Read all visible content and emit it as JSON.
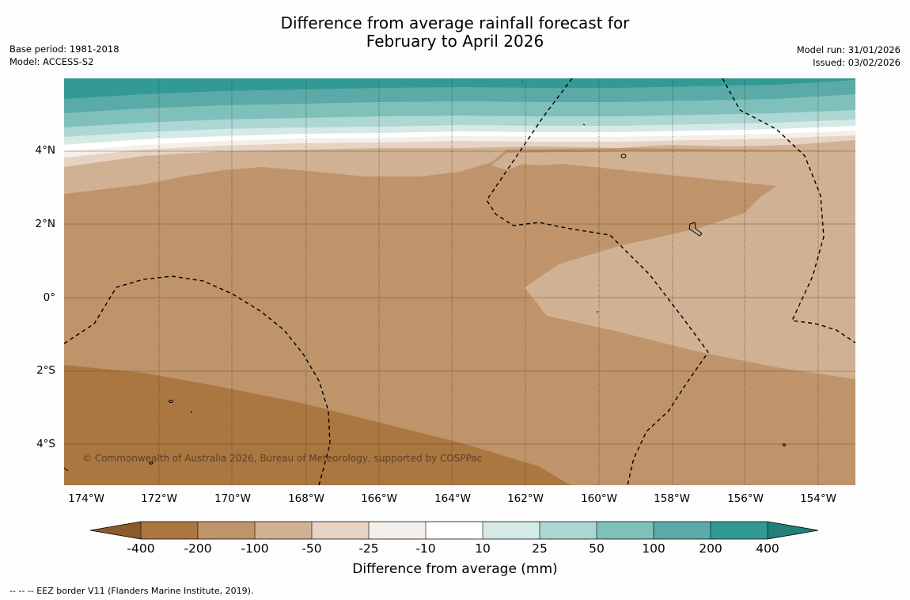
{
  "title": {
    "line1": "Difference from average rainfall forecast for",
    "line2": "February to April 2026"
  },
  "meta_left": {
    "base_period": "Base period: 1981-2018",
    "model": "Model: ACCESS-S2"
  },
  "meta_right": {
    "model_run": "Model run: 31/01/2026",
    "issued": "Issued: 03/02/2026"
  },
  "latitude_labels": [
    "4°N",
    "2°N",
    "0°",
    "2°S",
    "4°S"
  ],
  "longitude_labels": [
    "174°W",
    "172°W",
    "170°W",
    "168°W",
    "166°W",
    "164°W",
    "162°W",
    "160°W",
    "158°W",
    "156°W",
    "154°W"
  ],
  "copyright": "© Commonwealth of Australia 2026, Bureau of Meteorology, supported by COSPPac",
  "colorbar": {
    "title": "Difference from average (mm)",
    "tick_labels": [
      "-400",
      "-200",
      "-100",
      "-50",
      "-25",
      "-10",
      "10",
      "25",
      "50",
      "100",
      "200",
      "400"
    ],
    "colors": [
      "#8b5a2b",
      "#ab7740",
      "#c0946a",
      "#d1b194",
      "#e6d3c3",
      "#f4efea",
      "#ffffff",
      "#d5eae7",
      "#acd7d3",
      "#80c0bb",
      "#5aaaa8",
      "#339995",
      "#227f7c"
    ]
  },
  "legend_footnote": "-- -- -- EEZ border V11 (Flanders Marine Institute, 2019)."
}
